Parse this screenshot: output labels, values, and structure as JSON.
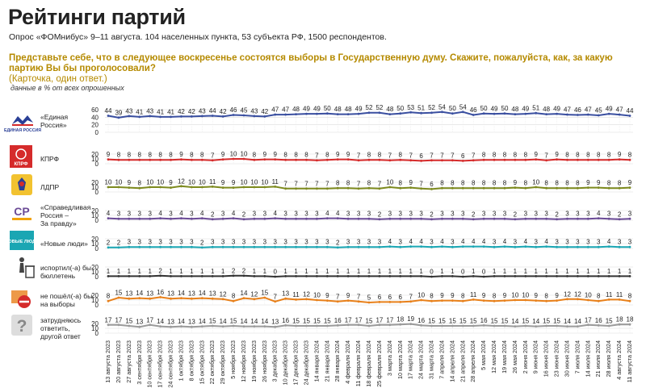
{
  "title": "Рейтинги партий",
  "subtitle": "Опрос «ФОМнибус» 9–11 августа. 104 населенных пункта, 53 субъекта РФ, 1500 респондентов.",
  "question": "Представьте себе, что в следующее воскресенье состоятся выборы в Государственную думу. Скажите, пожалуйста, как, за какую партию Вы бы проголосовали?",
  "question_note": "(Карточка, один ответ.)",
  "unit_note": "данные в % от всех опрошенных",
  "chart_data": {
    "type": "line",
    "title": "Рейтинги партий",
    "x": [
      "13 августа 2023",
      "20 августа 2023",
      "27 августа 2023",
      "3 сентября 2023",
      "10 сентября 2023",
      "17 сентября 2023",
      "24 сентября 2023",
      "1 октября 2023",
      "8 октября 2023",
      "15 октября 2023",
      "22 октября 2023",
      "29 октября 2023",
      "5 ноября 2023",
      "12 ноября 2023",
      "19 ноября 2023",
      "26 ноября 2023",
      "3 декабря 2023",
      "10 декабря 2023",
      "17 декабря 2023",
      "24 декабря 2023",
      "14 января 2024",
      "21 января 2024",
      "28 января 2024",
      "4 февраля 2024",
      "11 февраля 2024",
      "18 февраля 2024",
      "25 февраля 2024",
      "3 марта 2024",
      "10 марта 2024",
      "17 марта 2024",
      "24 марта 2024",
      "31 марта 2024",
      "7 апреля 2024",
      "14 апреля 2024",
      "21 апреля 2024",
      "28 апреля 2024",
      "5 мая 2024",
      "12 мая 2024",
      "19 мая 2024",
      "26 мая 2024",
      "2 июня 2024",
      "9 июня 2024",
      "16 июня 2024",
      "23 июня 2024",
      "30 июня 2024",
      "7 июля 2024",
      "14 июля 2024",
      "21 июля 2024",
      "28 июля 2024",
      "4 августа 2024",
      "11 августа 2024"
    ],
    "series": [
      {
        "name": "«Единая Россия»",
        "color": "#3a4fa0",
        "ylim": [
          0,
          60
        ],
        "ticks": [
          0,
          20,
          40,
          60
        ],
        "values": [
          44,
          39,
          43,
          41,
          43,
          41,
          41,
          42,
          42,
          43,
          44,
          42,
          46,
          45,
          43,
          42,
          47,
          47,
          48,
          49,
          49,
          50,
          48,
          48,
          49,
          52,
          52,
          48,
          50,
          53,
          51,
          52,
          54,
          50,
          54,
          46,
          50,
          49,
          50,
          48,
          49,
          51,
          48,
          49,
          47,
          46,
          47,
          45,
          49,
          47,
          44
        ]
      },
      {
        "name": "КПРФ",
        "color": "#d52b2b",
        "ylim": [
          0,
          20
        ],
        "ticks": [
          0,
          10,
          20
        ],
        "values": [
          9,
          8,
          8,
          8,
          8,
          8,
          8,
          9,
          8,
          8,
          7,
          9,
          10,
          10,
          8,
          9,
          9,
          8,
          8,
          8,
          7,
          8,
          9,
          9,
          7,
          8,
          8,
          7,
          8,
          7,
          6,
          7,
          7,
          7,
          6,
          7,
          8,
          8,
          8,
          8,
          8,
          9,
          7,
          9,
          8,
          8,
          8,
          8,
          8,
          9,
          8
        ]
      },
      {
        "name": "ЛДПР",
        "color": "#7d8a1e",
        "ylim": [
          0,
          20
        ],
        "ticks": [
          0,
          10,
          20
        ],
        "values": [
          10,
          10,
          9,
          8,
          10,
          10,
          9,
          12,
          10,
          10,
          11,
          9,
          9,
          10,
          10,
          10,
          11,
          7,
          7,
          7,
          7,
          7,
          8,
          8,
          7,
          8,
          7,
          10,
          8,
          9,
          7,
          6,
          8,
          8,
          8,
          8,
          8,
          8,
          8,
          9,
          8,
          10,
          8,
          8,
          8,
          8,
          9,
          9,
          8,
          8,
          9
        ]
      },
      {
        "name": "«Справедливая Россия – За правду»",
        "color": "#6b4b96",
        "ylim": [
          0,
          20
        ],
        "ticks": [
          0,
          10,
          20
        ],
        "values": [
          4,
          3,
          3,
          3,
          3,
          4,
          3,
          4,
          3,
          4,
          2,
          3,
          4,
          2,
          3,
          3,
          4,
          3,
          3,
          3,
          3,
          4,
          4,
          3,
          3,
          3,
          2,
          3,
          3,
          3,
          3,
          2,
          3,
          3,
          3,
          2,
          3,
          3,
          3,
          2,
          3,
          3,
          3,
          2,
          3,
          3,
          3,
          4,
          3,
          2,
          3
        ]
      },
      {
        "name": "«Новые люди»",
        "color": "#1aa6b3",
        "ylim": [
          0,
          20
        ],
        "ticks": [
          0,
          10,
          20
        ],
        "values": [
          2,
          2,
          3,
          3,
          3,
          3,
          3,
          3,
          3,
          2,
          3,
          3,
          3,
          3,
          3,
          3,
          3,
          3,
          3,
          3,
          3,
          3,
          2,
          3,
          3,
          3,
          3,
          4,
          3,
          4,
          4,
          3,
          4,
          3,
          4,
          4,
          4,
          3,
          4,
          3,
          4,
          3,
          4,
          3,
          3,
          3,
          3,
          3,
          4,
          3,
          3
        ]
      },
      {
        "name": "испортил(-а) бы бюллетень",
        "color": "#333333",
        "ylim": [
          0,
          20
        ],
        "ticks": [
          0,
          10,
          20
        ],
        "values": [
          1,
          1,
          1,
          1,
          1,
          2,
          1,
          1,
          1,
          1,
          1,
          1,
          2,
          2,
          1,
          1,
          0,
          1,
          1,
          1,
          1,
          1,
          1,
          1,
          1,
          1,
          1,
          1,
          1,
          1,
          1,
          0,
          1,
          1,
          0,
          1,
          0,
          1,
          1,
          1,
          1,
          1,
          1,
          1,
          1,
          1,
          1,
          1,
          1,
          1,
          1
        ]
      },
      {
        "name": "не пошёл(-а) бы на выборы",
        "color": "#e8801a",
        "ylim": [
          0,
          20
        ],
        "ticks": [
          0,
          10,
          20
        ],
        "values": [
          8,
          15,
          13,
          14,
          13,
          16,
          13,
          14,
          13,
          14,
          13,
          12,
          8,
          14,
          12,
          15,
          7,
          13,
          11,
          12,
          10,
          9,
          7,
          9,
          7,
          5,
          6,
          6,
          6,
          7,
          10,
          8,
          9,
          9,
          8,
          11,
          9,
          8,
          9,
          10,
          10,
          9,
          8,
          9,
          12,
          12,
          10,
          8,
          11,
          11,
          8
        ]
      },
      {
        "name": "затрудняюсь ответить, другой ответ",
        "color": "#9a9a9a",
        "ylim": [
          0,
          20
        ],
        "ticks": [
          0,
          10,
          20
        ],
        "values": [
          17,
          17,
          15,
          13,
          17,
          14,
          13,
          14,
          13,
          14,
          15,
          14,
          15,
          14,
          14,
          14,
          13,
          16,
          15,
          15,
          15,
          15,
          16,
          17,
          17,
          15,
          17,
          17,
          18,
          19,
          16,
          15,
          15,
          15,
          15,
          15,
          16,
          15,
          15,
          14,
          15,
          14,
          15,
          15,
          14,
          14,
          17,
          16,
          15,
          18,
          18
        ]
      }
    ]
  },
  "icons": [
    "united-russia-logo",
    "kprf-logo",
    "ldpr-logo",
    "sr-logo",
    "new-people-logo",
    "trash-bin-icon",
    "no-vote-icon",
    "question-mark-icon"
  ],
  "icon_texts": {
    "united_russia": "ЕДИНАЯ РОССИЯ",
    "kprf": "КПРФ",
    "sr": "СР",
    "new_people": "НОВЫЕ ЛЮДИ"
  }
}
